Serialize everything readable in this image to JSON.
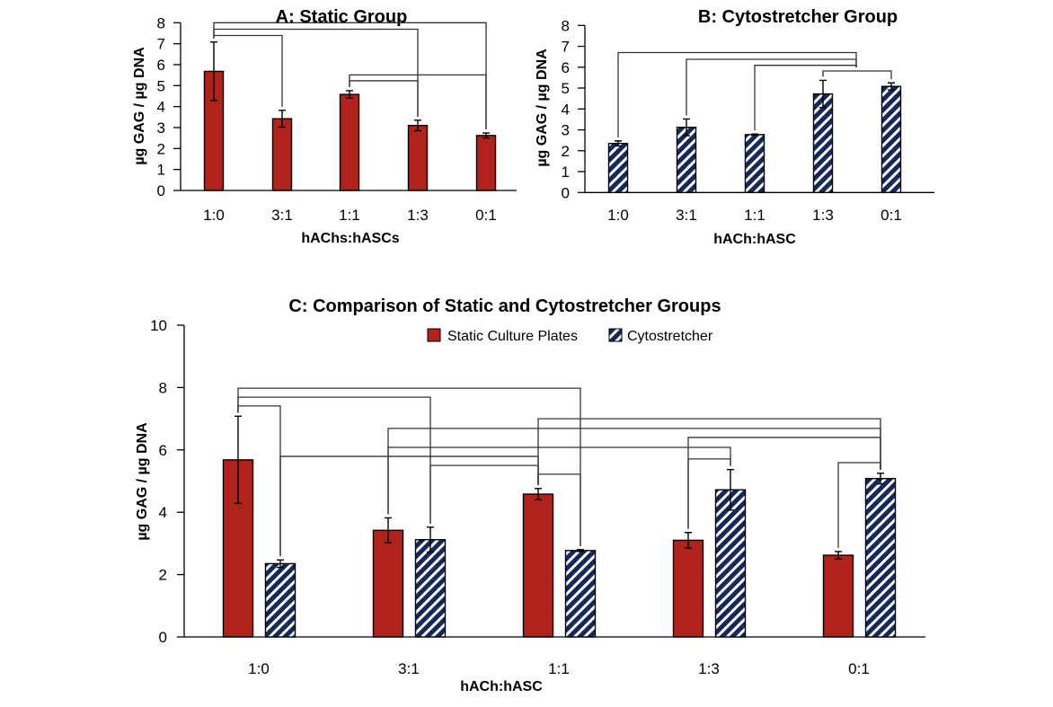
{
  "colors": {
    "static": "#B0231B",
    "cyto": "#14285A",
    "cyto_stripe": "#FFFFFF"
  },
  "chart_data": [
    {
      "type": "bar",
      "title": "A:  Static Group",
      "xlabel": "hAChs:hASCs",
      "ylabel": "µg  GAG  /  µg  DNA",
      "ylim": [
        0,
        8
      ],
      "yticks": [
        "0",
        "1",
        "2",
        "3",
        "4",
        "5",
        "6",
        "7",
        "8"
      ],
      "categories": [
        "1:0",
        "3:1",
        "1:1",
        "1:3",
        "0:1"
      ],
      "series": [
        {
          "values": [
            5.68,
            3.42,
            4.58,
            3.1,
            2.62
          ],
          "errors": [
            1.4,
            0.4,
            0.18,
            0.25,
            0.12
          ],
          "fill": "static"
        }
      ],
      "grid": false,
      "brackets": [
        {
          "from": "1:0",
          "to": "0:1",
          "y": 8.0
        },
        {
          "from": "1:0",
          "to": "1:3",
          "y": 7.69
        },
        {
          "from": "1:0",
          "to": "3:1",
          "y": 7.39
        },
        {
          "from": "1:1",
          "to": "0:1",
          "y": 5.51
        },
        {
          "from": "1:1",
          "to": "1:3",
          "y": 5.23
        }
      ]
    },
    {
      "type": "bar",
      "title": "B:  Cytostretcher  Group",
      "xlabel": "hACh:hASC",
      "ylabel": "µg  GAG  /  µg  DNA",
      "ylim": [
        0,
        8
      ],
      "yticks": [
        "0",
        "1",
        "2",
        "3",
        "4",
        "5",
        "6",
        "7",
        "8"
      ],
      "categories": [
        "1:0",
        "3:1",
        "1:1",
        "1:3",
        "0:1"
      ],
      "series": [
        {
          "values": [
            2.35,
            3.12,
            2.77,
            4.72,
            5.08
          ],
          "errors": [
            0.12,
            0.4,
            0.03,
            0.65,
            0.17
          ],
          "fill": "cyto"
        }
      ],
      "grid": false,
      "brackets": [
        {
          "from": "1:0",
          "to": "1:3 & 0:1",
          "y": 6.7
        },
        {
          "from": "3:1",
          "to": "1:3 & 0:1",
          "y": 6.38
        },
        {
          "from": "1:1",
          "to": "1:3 & 0:1",
          "y": 6.09
        },
        {
          "from": "1:3",
          "to": "0:1",
          "y": 5.82
        }
      ]
    },
    {
      "type": "bar",
      "title": "C:  Comparison  of  Static  and  Cytostretcher  Groups",
      "xlabel": "hACh:hASC",
      "ylabel": "µg  GAG  /  µg  DNA",
      "ylim": [
        0,
        10
      ],
      "yticks": [
        "0",
        "2",
        "4",
        "6",
        "8",
        "10"
      ],
      "categories": [
        "1:0",
        "3:1",
        "1:1",
        "1:3",
        "0:1"
      ],
      "legend_position": "top-center",
      "series": [
        {
          "name": "Static Culture Plates",
          "values": [
            5.68,
            3.42,
            4.58,
            3.1,
            2.62
          ],
          "errors": [
            1.4,
            0.4,
            0.18,
            0.25,
            0.12
          ],
          "fill": "static"
        },
        {
          "name": "Cytostretcher",
          "values": [
            2.35,
            3.12,
            2.77,
            4.72,
            5.08
          ],
          "errors": [
            0.12,
            0.4,
            0.03,
            0.65,
            0.17
          ],
          "fill": "cyto"
        }
      ],
      "grid": false,
      "brackets": [
        {
          "from": "Static 1:0",
          "to": "Cytostretcher 1:1",
          "y": 7.98
        },
        {
          "from": "Static 1:0",
          "to": "Cytostretcher 3:1",
          "y": 7.69
        },
        {
          "from": "Static 1:0",
          "to": "Cytostretcher 1:0",
          "y": 7.41
        },
        {
          "from": "Static 1:1",
          "to": "Cytostretcher 0:1",
          "y": 7.0
        },
        {
          "from": "Static 3:1",
          "to": "Cytostretcher 0:1",
          "y": 6.69
        },
        {
          "from": "Static 1:3",
          "to": "Cytostretcher 0:1",
          "y": 6.4
        },
        {
          "from": "Static 3:1",
          "to": "Cytostretcher 1:3",
          "y": 6.08
        },
        {
          "from": "Cytostretcher 1:0",
          "to": "Static 1:1",
          "y": 5.79
        },
        {
          "from": "Static 1:3",
          "to": "Cytostretcher 1:3",
          "y": 5.71
        },
        {
          "from": "Static 0:1",
          "to": "Cytostretcher 0:1",
          "y": 5.59
        },
        {
          "from": "Cytostretcher 3:1",
          "to": "Static 1:1",
          "y": 5.5
        },
        {
          "from": "Static 1:1",
          "to": "Cytostretcher 1:1",
          "y": 5.22
        }
      ]
    }
  ]
}
